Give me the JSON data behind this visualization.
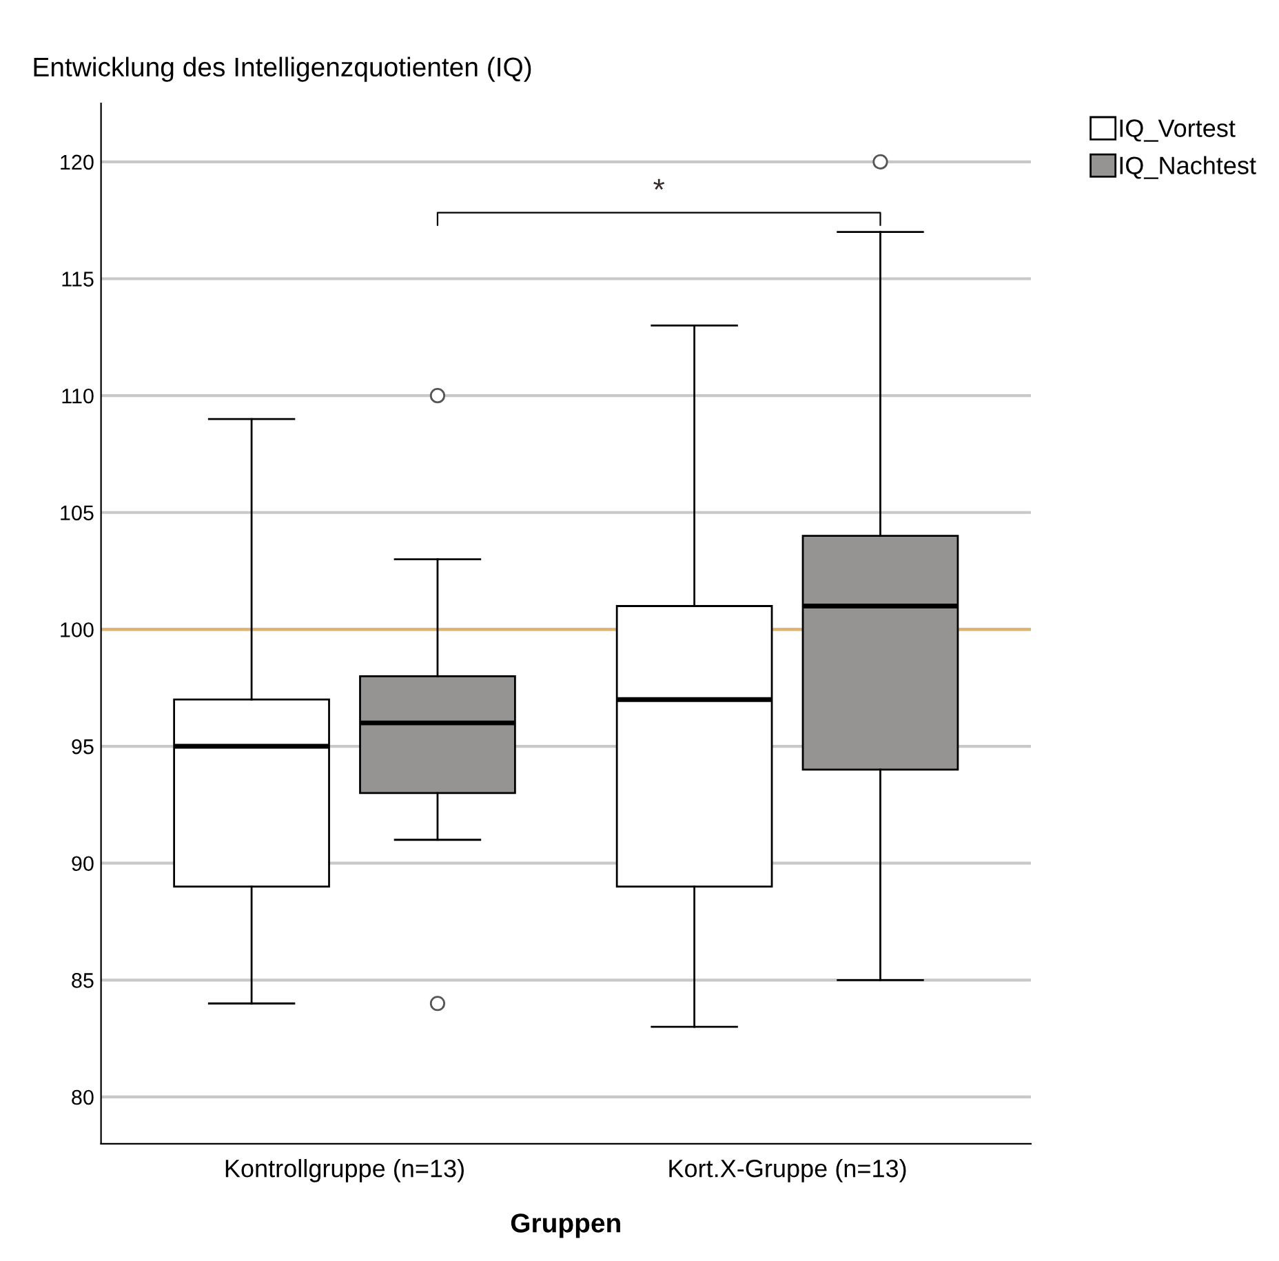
{
  "chart_data": {
    "type": "box",
    "title": "Entwicklung des Intelligenzquotienten (IQ)",
    "xlabel": "Gruppen",
    "categories": [
      "Kontrollgruppe (n=13)",
      "Kort.X-Gruppe (n=13)"
    ],
    "series": [
      {
        "name": "IQ_Vortest",
        "color": "#ffffff",
        "boxes": [
          {
            "low": 84,
            "q1": 89,
            "median": 95,
            "q3": 97,
            "high": 109
          },
          {
            "low": 83,
            "q1": 89,
            "median": 97,
            "q3": 101,
            "high": 113
          }
        ]
      },
      {
        "name": "IQ_Nachtest",
        "color": "#969493",
        "boxes": [
          {
            "low": 91,
            "q1": 93,
            "median": 96,
            "q3": 98,
            "high": 103,
            "outliers": [
              110,
              84
            ]
          },
          {
            "low": 85,
            "q1": 94,
            "median": 101,
            "q3": 104,
            "high": 117,
            "outliers": [
              120
            ]
          }
        ]
      }
    ],
    "ylim": [
      78,
      122.5
    ],
    "yticks": [
      80,
      85,
      90,
      95,
      100,
      105,
      110,
      115,
      120
    ],
    "grid": "y",
    "legend": "top right",
    "ref_lines": [
      {
        "axis": "y",
        "value": 100,
        "color": "#e0b36e"
      }
    ],
    "annotations": [
      "*"
    ]
  }
}
